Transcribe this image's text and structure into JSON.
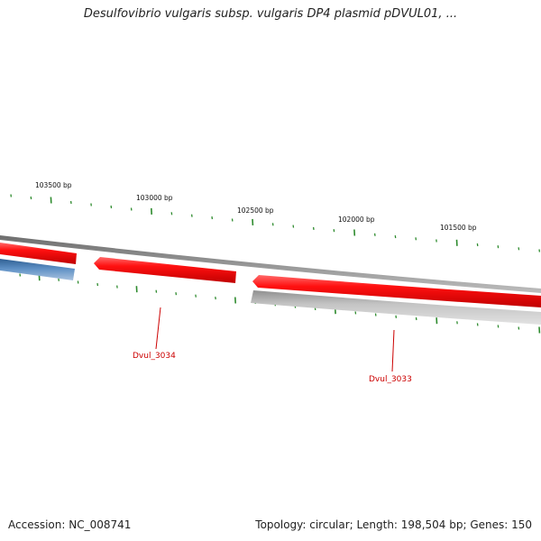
{
  "title": "Desulfovibrio vulgaris subsp. vulgaris DP4 plasmid pDVUL01, ...",
  "footer": {
    "accession": "Accession: NC_008741",
    "summary": "Topology: circular; Length: 198,504 bp; Genes: 150"
  },
  "ruler": {
    "labels": [
      "103500 bp",
      "103000 bp",
      "102500 bp",
      "102000 bp",
      "101500 bp"
    ],
    "tick_color": "#2e8b2e"
  },
  "genes": {
    "labels": [
      "Dvul_3034",
      "Dvul_3033"
    ],
    "colors": {
      "forward": "#ee0000",
      "reverse_gray": "#b8b8b8",
      "reverse_blue": "#4a7fb5",
      "backbone": "#8a8a8a",
      "label": "#cc0000"
    }
  }
}
